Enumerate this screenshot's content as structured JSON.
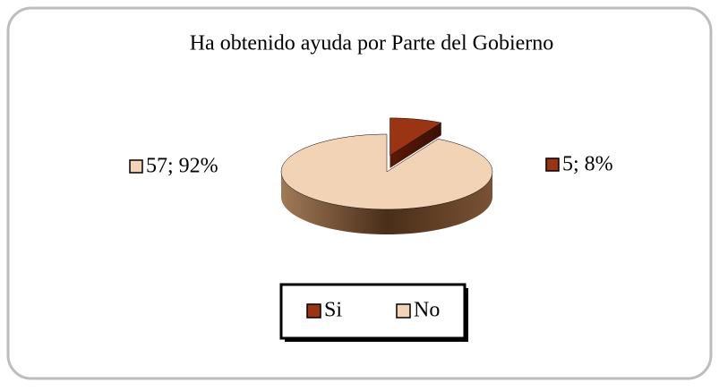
{
  "chart_data": {
    "type": "pie3d",
    "title": "Ha obtenido ayuda por Parte del Gobierno",
    "categories": [
      "Si",
      "No"
    ],
    "values": [
      5,
      57
    ],
    "value_labels": [
      "5; 8%",
      "57; 92%"
    ],
    "colors": [
      "#9a3412",
      "#f3d3b5"
    ],
    "legend": "bottom",
    "exploded": [
      true,
      false
    ]
  }
}
